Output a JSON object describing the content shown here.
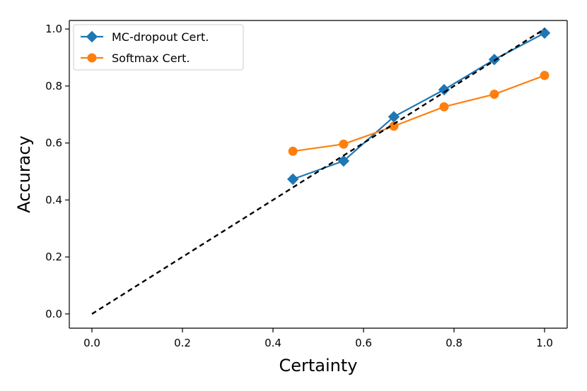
{
  "chart_data": {
    "type": "line",
    "title": "",
    "xlabel": "Certainty",
    "ylabel": "Accuracy",
    "xlim": [
      -0.05,
      1.05
    ],
    "ylim": [
      -0.05,
      1.03
    ],
    "xticks": [
      0.0,
      0.2,
      0.4,
      0.6,
      0.8,
      1.0
    ],
    "yticks": [
      0.0,
      0.2,
      0.4,
      0.6,
      0.8,
      1.0
    ],
    "xtick_labels": [
      "0.0",
      "0.2",
      "0.4",
      "0.6",
      "0.8",
      "1.0"
    ],
    "ytick_labels": [
      "0.0",
      "0.2",
      "0.4",
      "0.6",
      "0.8",
      "1.0"
    ],
    "grid": false,
    "legend_position": "top-left",
    "reference_line": {
      "name": "ideal",
      "x": [
        0.0,
        1.0
      ],
      "y": [
        0.0,
        1.0
      ],
      "style": "dashed",
      "color": "#000000"
    },
    "series": [
      {
        "name": "MC-dropout Cert.",
        "marker": "diamond",
        "color": "#1f77b4",
        "x": [
          0.444,
          0.556,
          0.667,
          0.778,
          0.889,
          1.0
        ],
        "y": [
          0.473,
          0.537,
          0.692,
          0.787,
          0.893,
          0.986
        ]
      },
      {
        "name": "Softmax Cert.",
        "marker": "circle",
        "color": "#ff7f0e",
        "x": [
          0.444,
          0.556,
          0.667,
          0.778,
          0.889,
          1.0
        ],
        "y": [
          0.571,
          0.596,
          0.659,
          0.727,
          0.771,
          0.837
        ]
      }
    ]
  }
}
